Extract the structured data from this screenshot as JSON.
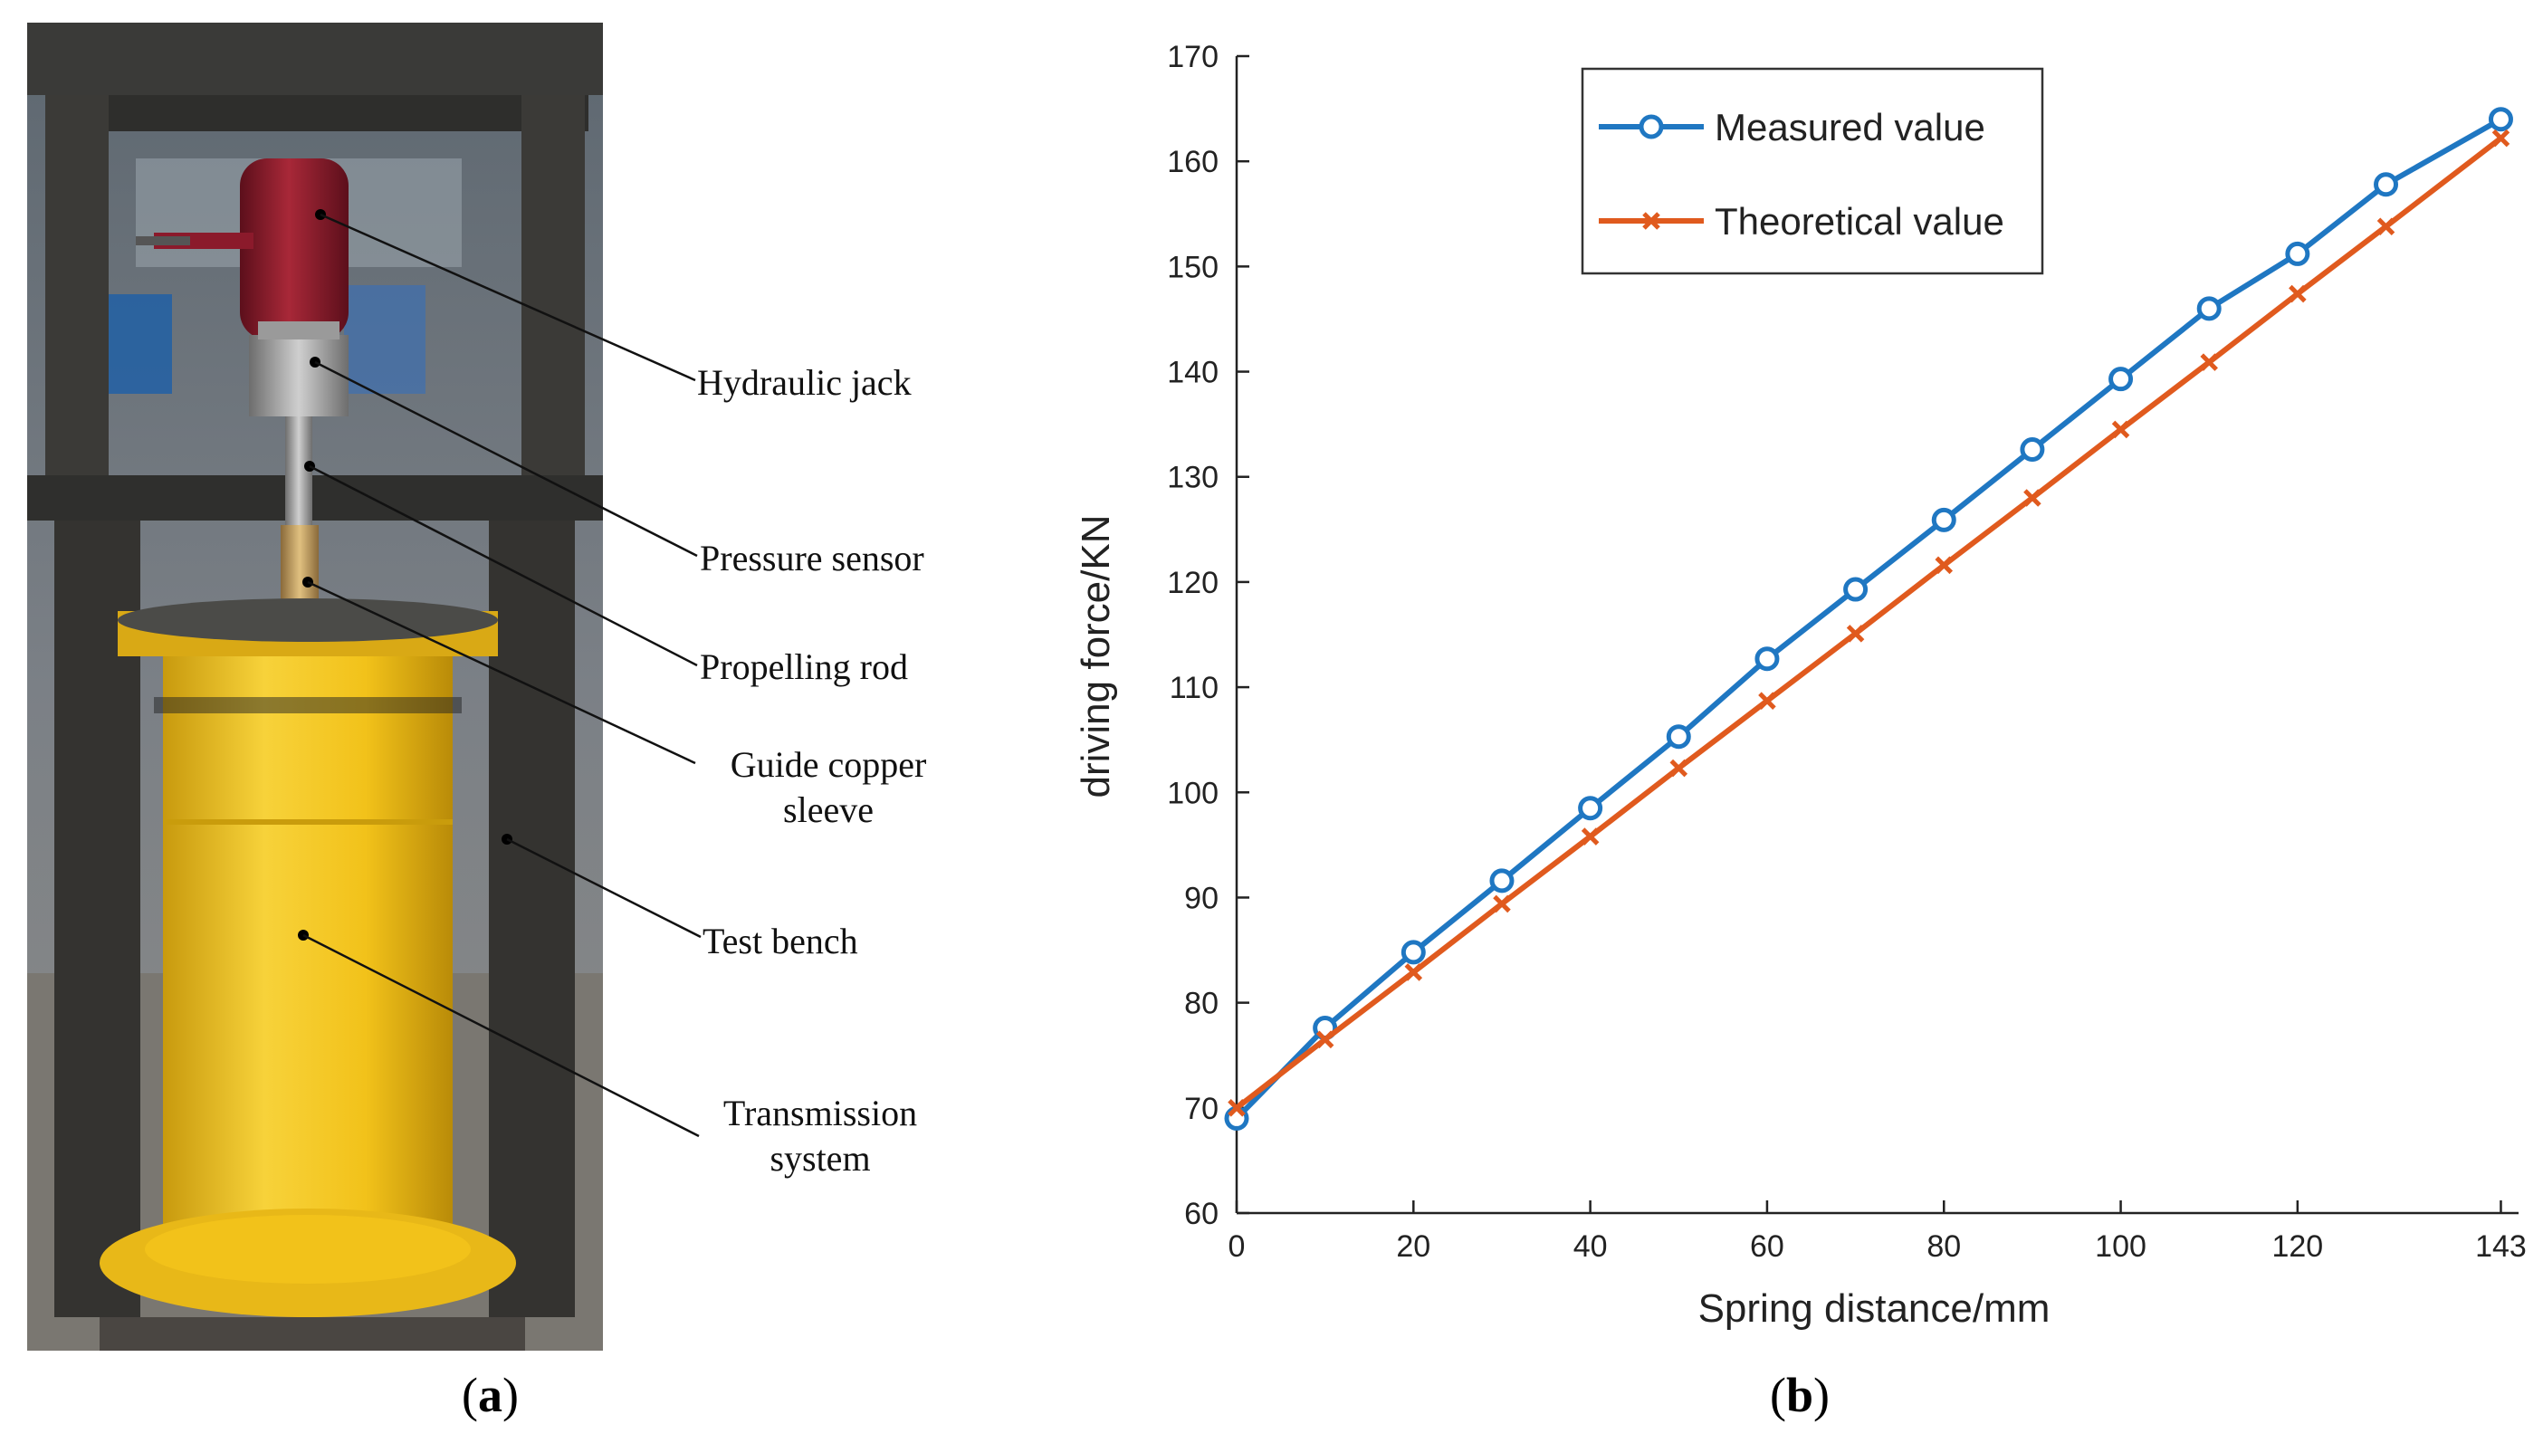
{
  "panel_a": {
    "caption_letter": "a",
    "callouts": [
      "Hydraulic jack",
      "Pressure sensor",
      "Propelling rod",
      "Guide copper sleeve",
      "Test bench",
      "Transmission system"
    ]
  },
  "panel_b": {
    "caption_letter": "b"
  },
  "colors": {
    "measured": "#1f77c2",
    "theoretical": "#e05a1e",
    "jack": "#8b1a2b",
    "cylinder": "#f2c21a"
  },
  "chart_data": {
    "type": "line",
    "title": "",
    "xlabel": "Spring distance/mm",
    "ylabel": "driving force/KN",
    "xlim": [
      0,
      145
    ],
    "ylim": [
      60,
      170
    ],
    "xticks": [
      0,
      20,
      40,
      60,
      80,
      100,
      120,
      143
    ],
    "yticks": [
      60,
      70,
      80,
      90,
      100,
      110,
      120,
      130,
      140,
      150,
      160,
      170
    ],
    "legend_position": "top-left",
    "grid": false,
    "series": [
      {
        "name": "Measured value",
        "marker": "circle",
        "x": [
          0,
          10,
          20,
          30,
          40,
          50,
          60,
          70,
          80,
          90,
          100,
          110,
          120,
          130,
          143
        ],
        "y": [
          69,
          77.6,
          84.8,
          91.6,
          98.5,
          105.3,
          112.7,
          119.3,
          125.9,
          132.6,
          139.3,
          146,
          151.2,
          157.8,
          164
        ]
      },
      {
        "name": "Theoretical value",
        "marker": "x",
        "x": [
          0,
          10,
          20,
          30,
          40,
          50,
          60,
          70,
          80,
          90,
          100,
          110,
          120,
          130,
          143
        ],
        "y": [
          70,
          76.5,
          82.9,
          89.4,
          95.8,
          102.3,
          108.7,
          115.1,
          121.6,
          128,
          134.5,
          140.9,
          147.4,
          153.8,
          162.2
        ]
      }
    ]
  }
}
